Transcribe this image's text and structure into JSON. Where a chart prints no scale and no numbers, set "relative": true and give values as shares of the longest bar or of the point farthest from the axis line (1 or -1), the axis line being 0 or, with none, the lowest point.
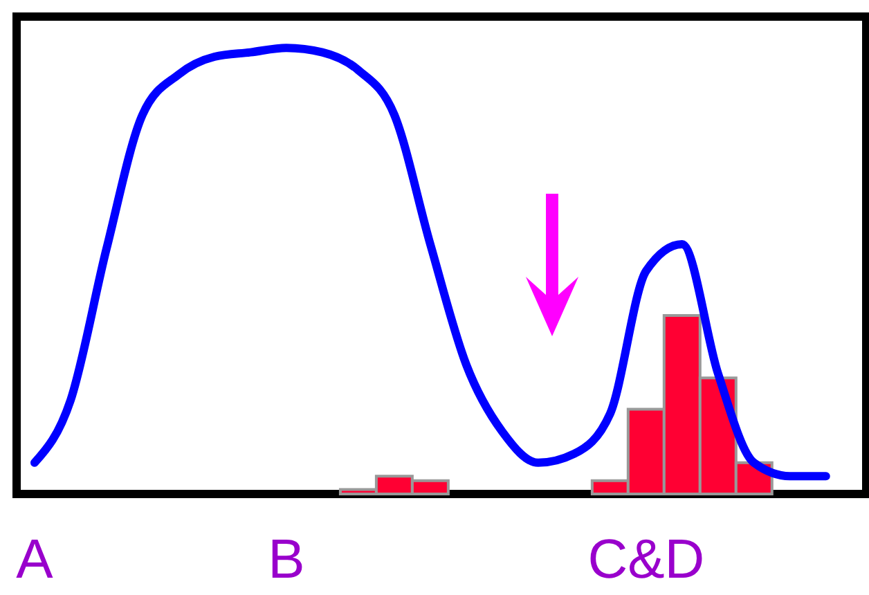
{
  "chart_data": {
    "type": "line",
    "relative": true,
    "tick_labels": "x",
    "categories": [
      "A",
      null,
      null,
      null,
      null,
      null,
      null,
      "B",
      null,
      null,
      null,
      null,
      null,
      null,
      null,
      null,
      null,
      "C&D",
      null,
      null,
      null,
      null,
      null
    ],
    "series": [
      {
        "color": "#0000ff",
        "values": [
          0.07,
          0.21,
          0.55,
          0.85,
          0.94,
          0.98,
          0.99,
          1.0,
          0.99,
          0.95,
          0.85,
          0.56,
          0.29,
          0.14,
          0.07,
          0.09,
          0.18,
          0.5,
          0.56,
          0.27,
          0.07,
          0.04,
          0.04
        ]
      },
      {
        "type": "bar",
        "color": "#ff0033",
        "values": [
          null,
          null,
          null,
          null,
          null,
          null,
          null,
          null,
          null,
          0.01,
          0.04,
          0.03,
          null,
          null,
          null,
          null,
          0.03,
          0.19,
          0.4,
          0.26,
          0.07,
          null,
          null
        ]
      }
    ]
  }
}
